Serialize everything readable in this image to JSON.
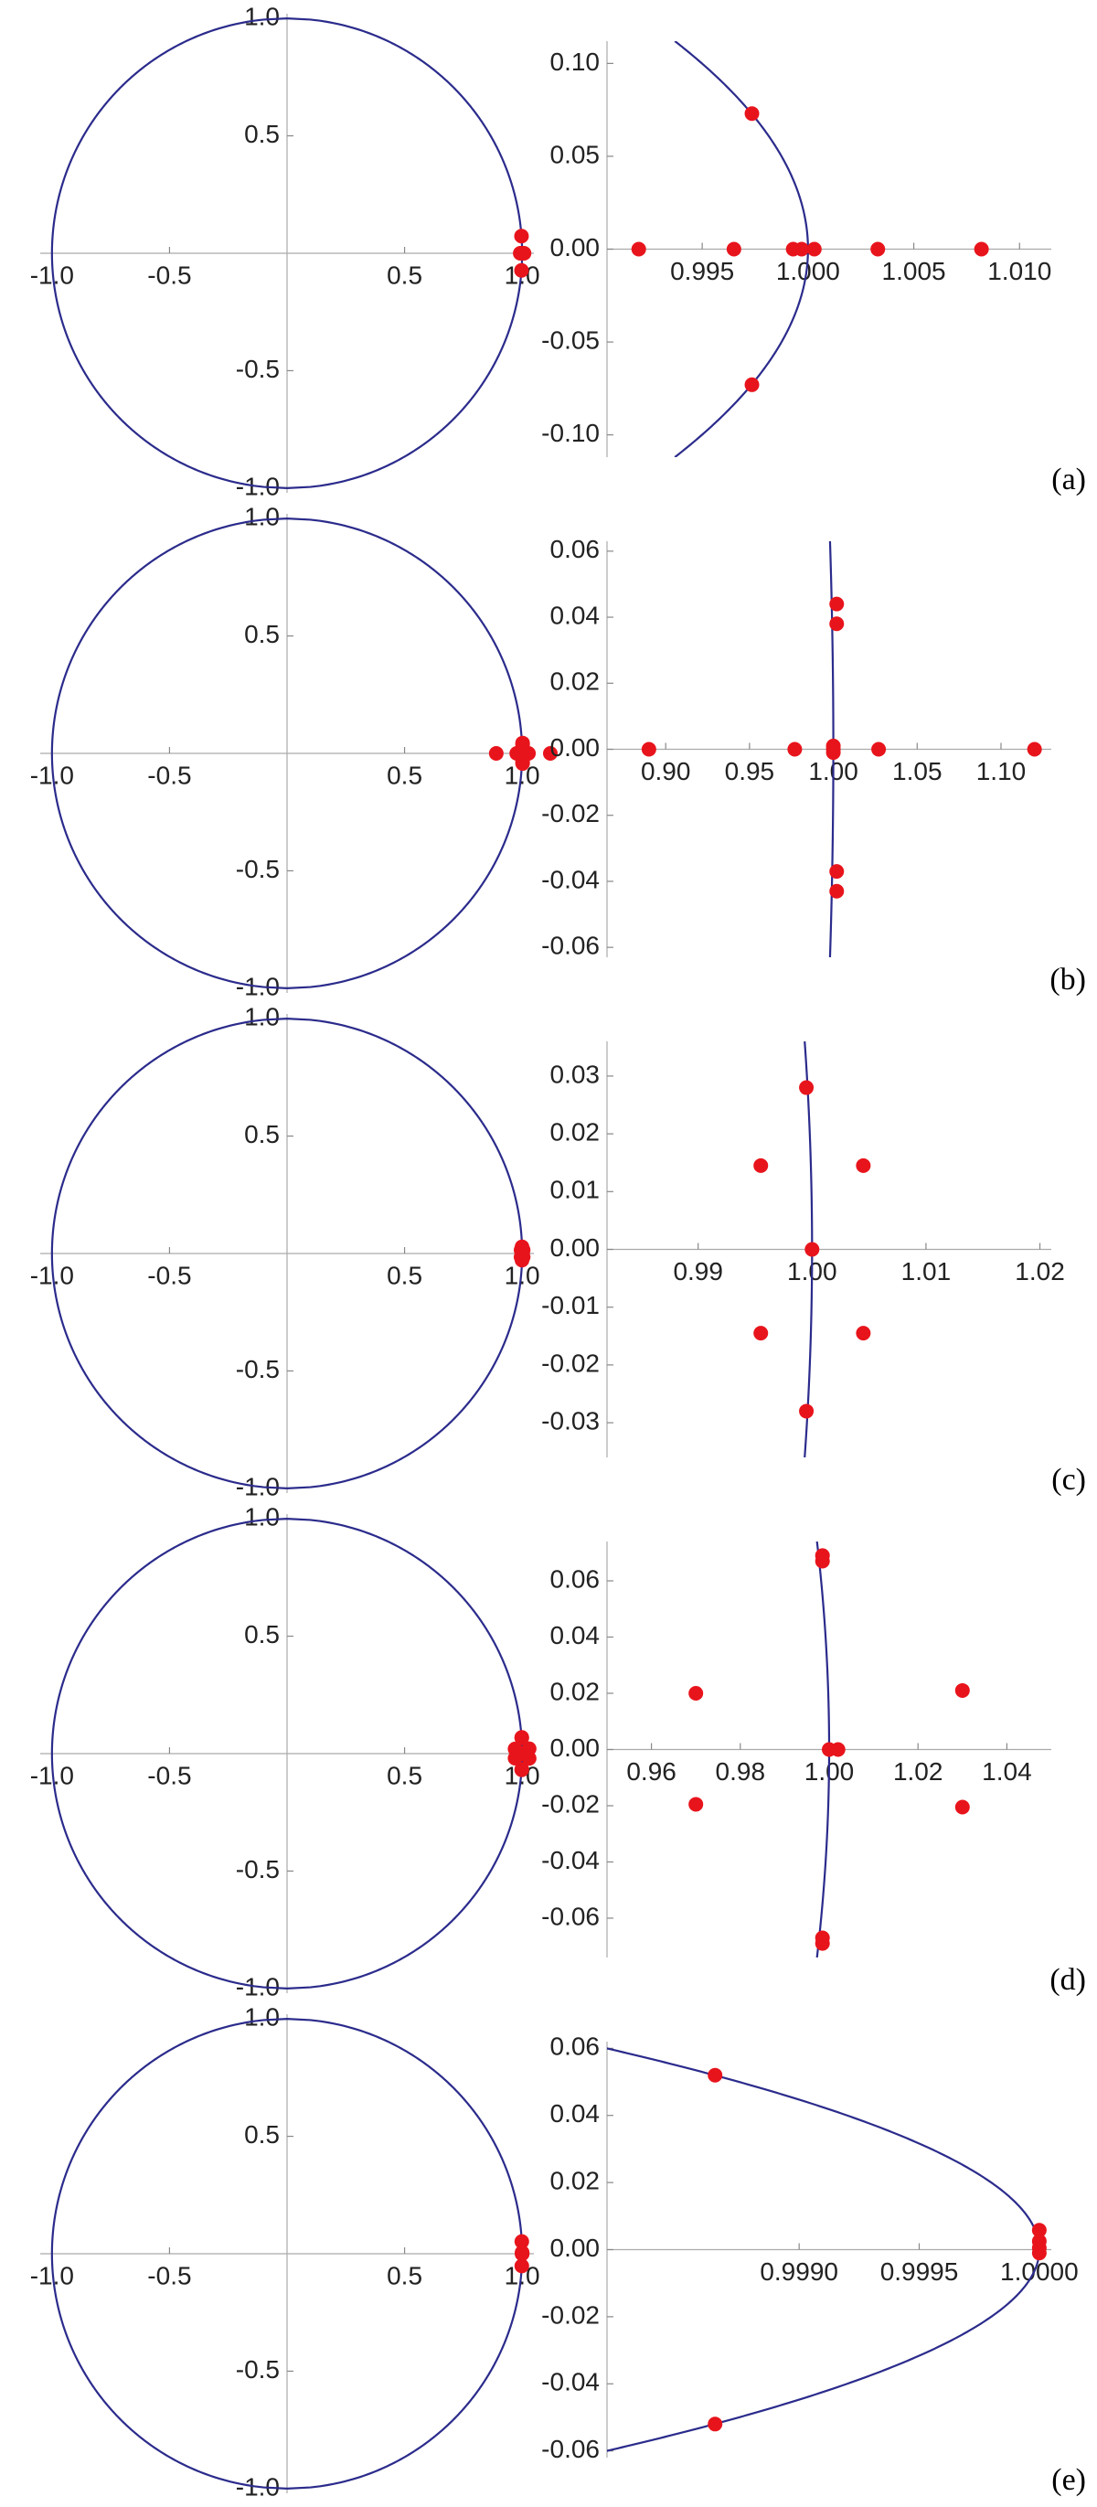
{
  "chart_data": [
    {
      "type": "scatter",
      "label": "(a)",
      "color": "#e8141c",
      "curve_color": "#2b2b8c",
      "unit_circle": true,
      "x": [
        0.992,
        0.9965,
        0.9993,
        0.9997,
        1.0003,
        1.0033,
        1.0082,
        0.99735,
        0.99735
      ],
      "y": [
        0,
        0,
        0,
        0,
        0,
        0,
        0,
        0.073,
        -0.073
      ],
      "panels": [
        {
          "xlim": [
            -1.05,
            1.05
          ],
          "ylim": [
            -1.02,
            1.02
          ],
          "xticks": [
            {
              "value": -1,
              "label": "-1.0"
            },
            -0.5,
            0.5,
            {
              "value": 1,
              "label": "1.0"
            }
          ],
          "yticks": [
            {
              "value": -1,
              "label": "-1.0"
            },
            -0.5,
            0.5,
            {
              "value": 1,
              "label": "1.0"
            }
          ]
        },
        {
          "xlim": [
            0.9905,
            1.0115
          ],
          "ylim": [
            -0.112,
            0.112
          ],
          "xticks": [
            0.995,
            {
              "value": 1,
              "label": "1.000"
            },
            1.005,
            {
              "value": 1.01,
              "label": "1.010"
            }
          ],
          "yticks": [
            {
              "value": -0.1,
              "label": "-0.10"
            },
            -0.05,
            {
              "value": 0,
              "label": "0.00"
            },
            0.05,
            {
              "value": 0.1,
              "label": "0.10"
            }
          ]
        }
      ]
    },
    {
      "type": "scatter",
      "label": "(b)",
      "color": "#e8141c",
      "curve_color": "#2b2b8c",
      "unit_circle": true,
      "x": [
        0.89,
        0.977,
        1.0,
        1.0,
        1.027,
        1.12,
        1.002,
        1.002,
        1.002,
        1.002,
        1.0
      ],
      "y": [
        0,
        0,
        0.001,
        -0.001,
        0,
        0,
        0.044,
        0.038,
        -0.037,
        -0.043,
        0
      ],
      "panels": [
        {
          "xlim": [
            -1.05,
            1.05
          ],
          "ylim": [
            -1.02,
            1.02
          ],
          "xticks": [
            {
              "value": -1,
              "label": "-1.0"
            },
            -0.5,
            0.5,
            {
              "value": 1,
              "label": "1.0"
            }
          ],
          "yticks": [
            {
              "value": -1,
              "label": "-1.0"
            },
            -0.5,
            0.5,
            {
              "value": 1,
              "label": "1.0"
            }
          ]
        },
        {
          "xlim": [
            0.865,
            1.13
          ],
          "ylim": [
            -0.063,
            0.063
          ],
          "xticks": [
            {
              "value": 0.9,
              "label": "0.90"
            },
            0.95,
            {
              "value": 1,
              "label": "1.00"
            },
            1.05,
            {
              "value": 1.1,
              "label": "1.10"
            }
          ],
          "yticks": [
            -0.06,
            -0.04,
            -0.02,
            {
              "value": 0,
              "label": "0.00"
            },
            0.02,
            0.04,
            0.06
          ]
        }
      ]
    },
    {
      "type": "scatter",
      "label": "(c)",
      "color": "#e8141c",
      "curve_color": "#2b2b8c",
      "unit_circle": true,
      "x": [
        0.9995,
        0.9955,
        1.0045,
        1.0,
        0.9955,
        1.0045,
        0.9995
      ],
      "y": [
        0.028,
        0.0145,
        0.0145,
        0,
        -0.0145,
        -0.0145,
        -0.028
      ],
      "panels": [
        {
          "xlim": [
            -1.05,
            1.05
          ],
          "ylim": [
            -1.02,
            1.02
          ],
          "xticks": [
            {
              "value": -1,
              "label": "-1.0"
            },
            -0.5,
            0.5,
            {
              "value": 1,
              "label": "1.0"
            }
          ],
          "yticks": [
            {
              "value": -1,
              "label": "-1.0"
            },
            -0.5,
            0.5,
            {
              "value": 1,
              "label": "1.0"
            }
          ]
        },
        {
          "xlim": [
            0.982,
            1.021
          ],
          "ylim": [
            -0.036,
            0.036
          ],
          "xticks": [
            0.99,
            {
              "value": 1,
              "label": "1.00"
            },
            1.01,
            1.02
          ],
          "yticks": [
            -0.03,
            -0.02,
            -0.01,
            {
              "value": 0,
              "label": "0.00"
            },
            0.01,
            0.02,
            0.03
          ]
        }
      ]
    },
    {
      "type": "scatter",
      "label": "(d)",
      "color": "#e8141c",
      "curve_color": "#2b2b8c",
      "unit_circle": true,
      "x": [
        0.97,
        0.97,
        1.03,
        1.03,
        0.9985,
        0.9985,
        0.9985,
        0.9985,
        1.0,
        1.002
      ],
      "y": [
        0.02,
        -0.0195,
        0.021,
        -0.0205,
        0.069,
        0.067,
        -0.067,
        -0.069,
        0,
        0
      ],
      "panels": [
        {
          "xlim": [
            -1.05,
            1.05
          ],
          "ylim": [
            -1.02,
            1.02
          ],
          "xticks": [
            {
              "value": -1,
              "label": "-1.0"
            },
            -0.5,
            0.5,
            {
              "value": 1,
              "label": "1.0"
            }
          ],
          "yticks": [
            {
              "value": -1,
              "label": "-1.0"
            },
            -0.5,
            0.5,
            {
              "value": 1,
              "label": "1.0"
            }
          ]
        },
        {
          "xlim": [
            0.95,
            1.05
          ],
          "ylim": [
            -0.074,
            0.074
          ],
          "xticks": [
            0.96,
            0.98,
            {
              "value": 1,
              "label": "1.00"
            },
            1.02,
            1.04
          ],
          "yticks": [
            -0.06,
            -0.04,
            -0.02,
            {
              "value": 0,
              "label": "0.00"
            },
            0.02,
            0.04,
            0.06
          ]
        }
      ]
    },
    {
      "type": "scatter",
      "label": "(e)",
      "color": "#e8141c",
      "curve_color": "#2b2b8c",
      "unit_circle": true,
      "x": [
        0.99865,
        0.99865,
        1.0,
        1.0,
        1.0,
        1.0
      ],
      "y": [
        0.052,
        -0.052,
        0.0058,
        0.0025,
        0.0005,
        -0.001
      ],
      "panels": [
        {
          "xlim": [
            -1.05,
            1.05
          ],
          "ylim": [
            -1.02,
            1.02
          ],
          "xticks": [
            {
              "value": -1,
              "label": "-1.0"
            },
            -0.5,
            0.5,
            {
              "value": 1,
              "label": "1.0"
            }
          ],
          "yticks": [
            {
              "value": -1,
              "label": "-1.0"
            },
            -0.5,
            0.5,
            {
              "value": 1,
              "label": "1.0"
            }
          ]
        },
        {
          "xlim": [
            0.9982,
            1.00005
          ],
          "ylim": [
            -0.062,
            0.062
          ],
          "xticks": [
            {
              "value": 0.999,
              "label": "0.9990"
            },
            {
              "value": 0.9995,
              "label": "0.9995"
            },
            {
              "value": 1,
              "label": "1.0000"
            }
          ],
          "yticks": [
            -0.06,
            -0.04,
            -0.02,
            {
              "value": 0,
              "label": "0.00"
            },
            0.02,
            0.04,
            0.06
          ]
        }
      ]
    }
  ]
}
